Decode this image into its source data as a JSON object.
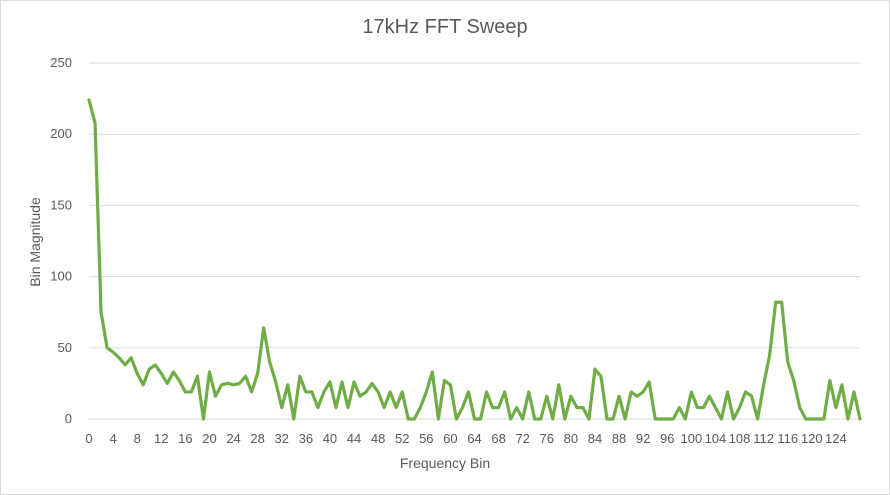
{
  "chart_data": {
    "type": "line",
    "title": "17kHz FFT Sweep",
    "xlabel": "Frequency Bin",
    "ylabel": "Bin Magnitude",
    "ylim": [
      0,
      250
    ],
    "yticks": [
      0,
      50,
      100,
      150,
      200,
      250
    ],
    "x_tick_labels": [
      "0",
      "4",
      "8",
      "12",
      "16",
      "20",
      "24",
      "28",
      "32",
      "36",
      "40",
      "44",
      "48",
      "52",
      "56",
      "60",
      "64",
      "68",
      "72",
      "76",
      "80",
      "84",
      "88",
      "92",
      "96",
      "100",
      "104",
      "108",
      "112",
      "116",
      "120",
      "124"
    ],
    "grid": true,
    "legend": "none",
    "x_start": 0,
    "series": [
      {
        "color": "#70ad47",
        "values": [
          224,
          208,
          75,
          50,
          47,
          43,
          38,
          43,
          32,
          24,
          35,
          38,
          32,
          25,
          33,
          27,
          19,
          19,
          30,
          0,
          33,
          16,
          24,
          25,
          24,
          25,
          30,
          19,
          32,
          64,
          40,
          26,
          8,
          24,
          0,
          30,
          19,
          19,
          8,
          19,
          26,
          8,
          26,
          8,
          26,
          16,
          19,
          25,
          19,
          8,
          19,
          8,
          19,
          0,
          0,
          8,
          19,
          33,
          0,
          27,
          24,
          0,
          8,
          19,
          0,
          0,
          19,
          8,
          8,
          19,
          0,
          8,
          0,
          19,
          0,
          0,
          16,
          0,
          24,
          0,
          16,
          8,
          8,
          0,
          35,
          30,
          0,
          0,
          16,
          0,
          19,
          16,
          19,
          26,
          0,
          0,
          0,
          0,
          8,
          0,
          19,
          8,
          8,
          16,
          8,
          0,
          19,
          0,
          8,
          19,
          16,
          0,
          24,
          45,
          82,
          82,
          40,
          27,
          8,
          0,
          0,
          0,
          0,
          27,
          8,
          24,
          0,
          19,
          0
        ]
      }
    ]
  }
}
